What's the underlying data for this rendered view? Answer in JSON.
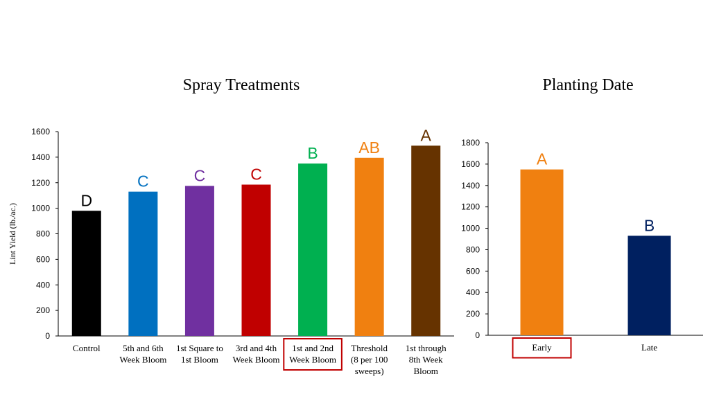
{
  "chart_data": [
    {
      "type": "bar",
      "title": "Spray Treatments",
      "ylabel": "Lint Yield (lb./ac.)",
      "xlabel": "",
      "ylim": [
        0,
        1600
      ],
      "yticks": [
        0,
        200,
        400,
        600,
        800,
        1000,
        1200,
        1400,
        1600
      ],
      "grid": false,
      "categories": [
        [
          "Control"
        ],
        [
          "5th and 6th",
          "Week Bloom"
        ],
        [
          "1st Square to",
          "1st Bloom"
        ],
        [
          "3rd and 4th",
          "Week Bloom"
        ],
        [
          "1st and 2nd",
          "Week Bloom"
        ],
        [
          "Threshold",
          "(8 per 100",
          "sweeps)"
        ],
        [
          "1st through",
          "8th Week",
          "Bloom"
        ]
      ],
      "values": [
        980,
        1130,
        1175,
        1185,
        1350,
        1395,
        1490
      ],
      "letters": [
        "D",
        "C",
        "C",
        "C",
        "B",
        "AB",
        "A"
      ],
      "colors": [
        "#000000",
        "#0070C0",
        "#7030A0",
        "#C00000",
        "#00B050",
        "#F08010",
        "#663300"
      ],
      "highlighted_category_index": 4,
      "highlight_color": "#C00000"
    },
    {
      "type": "bar",
      "title": "Planting Date",
      "ylabel": "",
      "xlabel": "",
      "ylim": [
        0,
        1800
      ],
      "yticks": [
        0,
        200,
        400,
        600,
        800,
        1000,
        1200,
        1400,
        1600,
        1800
      ],
      "grid": false,
      "categories": [
        [
          "Early"
        ],
        [
          "Late"
        ]
      ],
      "values": [
        1550,
        930
      ],
      "letters": [
        "A",
        "B"
      ],
      "colors": [
        "#F08010",
        "#002060"
      ],
      "highlighted_category_index": 0,
      "highlight_color": "#C00000"
    }
  ]
}
